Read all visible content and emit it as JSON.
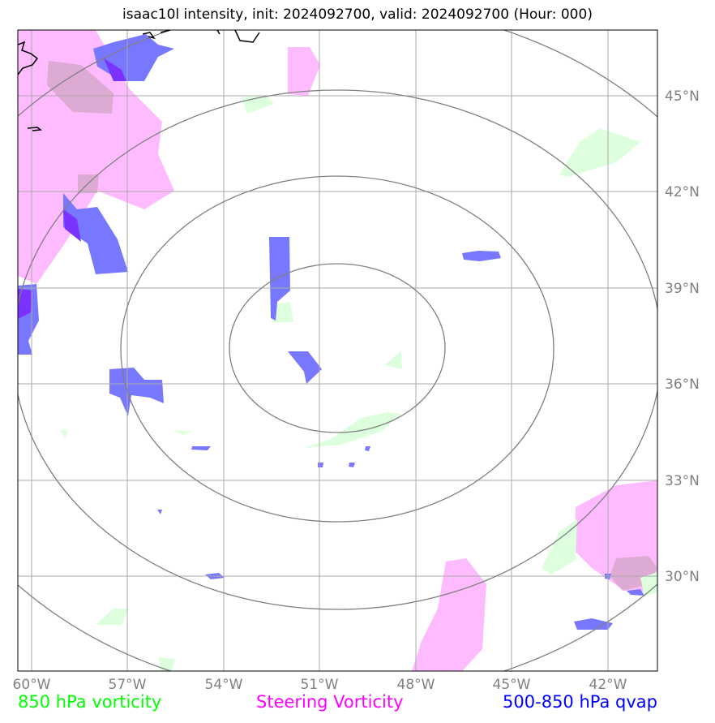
{
  "title": "isaac10l intensity, init: 2024092700, valid: 2024092700 (Hour: 000)",
  "lon_labels": [
    "60°W",
    "57°W",
    "54°W",
    "51°W",
    "48°W",
    "45°W",
    "42°W"
  ],
  "lat_labels": [
    "45°N",
    "42°N",
    "39°N",
    "36°N",
    "33°N",
    "30°N"
  ],
  "legend": [
    {
      "label": "850 hPa vorticity",
      "color": "#00ff00"
    },
    {
      "label": "Steering Vorticity",
      "color": "#ff00ff"
    },
    {
      "label": "500-850 hPa qvap",
      "color": "#0000ff"
    }
  ],
  "colors": {
    "vorticity_fill": "#ddffdd",
    "steering_fill": "#ffbbff",
    "qvap_fill": "#7777ff",
    "grid": "#aaaaaa",
    "range_rings": "#808080",
    "coastline": "#000000"
  }
}
